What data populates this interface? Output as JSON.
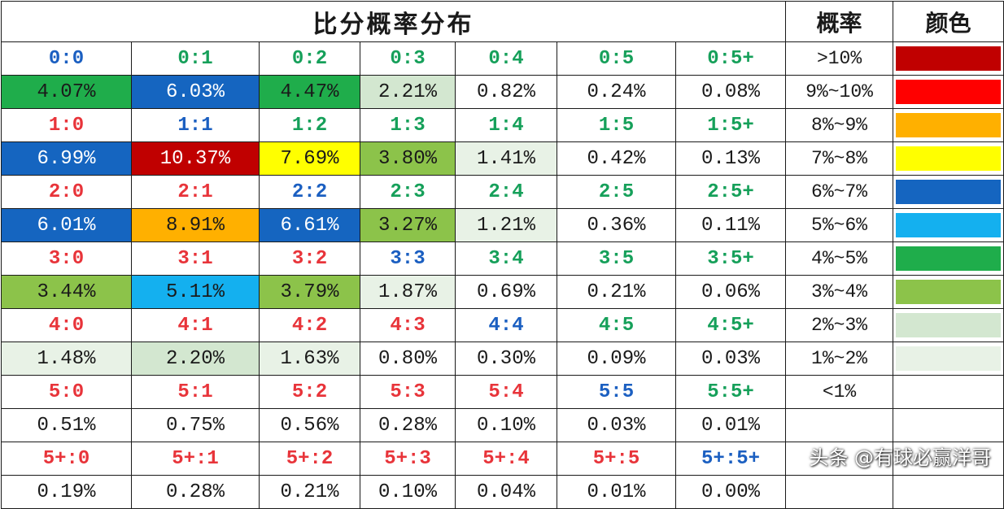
{
  "title": "比分概率分布",
  "legend_header": "概率",
  "color_header": "颜色",
  "watermark": "头条 @有球必赢洋哥",
  "palette": {
    "red_score": "#e8343a",
    "green_score": "#16a05a",
    "blue_score": "#1b5fc1",
    "dark_red": "#c00000",
    "red": "#ff0000",
    "orange": "#ffb000",
    "yellow": "#ffff00",
    "blue": "#1565c0",
    "light_blue": "#14b0ef",
    "green": "#1fad4b",
    "yellow_green": "#8cc34a",
    "pale_green": "#d3e7d0",
    "very_pale_green": "#e8f2e6",
    "white": "#ffffff"
  },
  "legend": [
    {
      "label": ">10%",
      "color": "#c00000"
    },
    {
      "label": "9%~10%",
      "color": "#ff0000"
    },
    {
      "label": "8%~9%",
      "color": "#ffb000"
    },
    {
      "label": "7%~8%",
      "color": "#ffff00"
    },
    {
      "label": "6%~7%",
      "color": "#1565c0"
    },
    {
      "label": "5%~6%",
      "color": "#14b0ef"
    },
    {
      "label": "4%~5%",
      "color": "#1fad4b"
    },
    {
      "label": "3%~4%",
      "color": "#8cc34a"
    },
    {
      "label": "2%~3%",
      "color": "#d3e7d0"
    },
    {
      "label": "1%~2%",
      "color": "#e8f2e6"
    },
    {
      "label": "<1%",
      "color": "#ffffff"
    }
  ],
  "groups": [
    {
      "scores": [
        "0:0",
        "0:1",
        "0:2",
        "0:3",
        "0:4",
        "0:5",
        "0:5+"
      ],
      "score_colors": [
        "blue",
        "green",
        "green",
        "green",
        "green",
        "green",
        "green"
      ],
      "probs": [
        "4.07%",
        "6.03%",
        "4.47%",
        "2.21%",
        "0.82%",
        "0.24%",
        "0.08%"
      ],
      "prob_colors": [
        "green",
        "blue",
        "green",
        "pale_green",
        "white",
        "white",
        "white"
      ]
    },
    {
      "scores": [
        "1:0",
        "1:1",
        "1:2",
        "1:3",
        "1:4",
        "1:5",
        "1:5+"
      ],
      "score_colors": [
        "red",
        "blue",
        "green",
        "green",
        "green",
        "green",
        "green"
      ],
      "probs": [
        "6.99%",
        "10.37%",
        "7.69%",
        "3.80%",
        "1.41%",
        "0.42%",
        "0.13%"
      ],
      "prob_colors": [
        "blue",
        "dark_red",
        "yellow",
        "yellow_green",
        "very_pale_green",
        "white",
        "white"
      ]
    },
    {
      "scores": [
        "2:0",
        "2:1",
        "2:2",
        "2:3",
        "2:4",
        "2:5",
        "2:5+"
      ],
      "score_colors": [
        "red",
        "red",
        "blue",
        "green",
        "green",
        "green",
        "green"
      ],
      "probs": [
        "6.01%",
        "8.91%",
        "6.61%",
        "3.27%",
        "1.21%",
        "0.36%",
        "0.11%"
      ],
      "prob_colors": [
        "blue",
        "orange",
        "blue",
        "yellow_green",
        "very_pale_green",
        "white",
        "white"
      ]
    },
    {
      "scores": [
        "3:0",
        "3:1",
        "3:2",
        "3:3",
        "3:4",
        "3:5",
        "3:5+"
      ],
      "score_colors": [
        "red",
        "red",
        "red",
        "blue",
        "green",
        "green",
        "green"
      ],
      "probs": [
        "3.44%",
        "5.11%",
        "3.79%",
        "1.87%",
        "0.69%",
        "0.21%",
        "0.06%"
      ],
      "prob_colors": [
        "yellow_green",
        "light_blue",
        "yellow_green",
        "very_pale_green",
        "white",
        "white",
        "white"
      ]
    },
    {
      "scores": [
        "4:0",
        "4:1",
        "4:2",
        "4:3",
        "4:4",
        "4:5",
        "4:5+"
      ],
      "score_colors": [
        "red",
        "red",
        "red",
        "red",
        "blue",
        "green",
        "green"
      ],
      "probs": [
        "1.48%",
        "2.20%",
        "1.63%",
        "0.80%",
        "0.30%",
        "0.09%",
        "0.03%"
      ],
      "prob_colors": [
        "very_pale_green",
        "pale_green",
        "very_pale_green",
        "white",
        "white",
        "white",
        "white"
      ]
    },
    {
      "scores": [
        "5:0",
        "5:1",
        "5:2",
        "5:3",
        "5:4",
        "5:5",
        "5:5+"
      ],
      "score_colors": [
        "red",
        "red",
        "red",
        "red",
        "red",
        "blue",
        "green"
      ],
      "probs": [
        "0.51%",
        "0.75%",
        "0.56%",
        "0.28%",
        "0.10%",
        "0.03%",
        "0.01%"
      ],
      "prob_colors": [
        "white",
        "white",
        "white",
        "white",
        "white",
        "white",
        "white"
      ]
    },
    {
      "scores": [
        "5+:0",
        "5+:1",
        "5+:2",
        "5+:3",
        "5+:4",
        "5+:5",
        "5+:5+"
      ],
      "score_colors": [
        "red",
        "red",
        "red",
        "red",
        "red",
        "red",
        "blue"
      ],
      "probs": [
        "0.19%",
        "0.28%",
        "0.21%",
        "0.10%",
        "0.04%",
        "0.01%",
        "0.00%"
      ],
      "prob_colors": [
        "white",
        "white",
        "white",
        "white",
        "white",
        "white",
        "white"
      ]
    }
  ]
}
